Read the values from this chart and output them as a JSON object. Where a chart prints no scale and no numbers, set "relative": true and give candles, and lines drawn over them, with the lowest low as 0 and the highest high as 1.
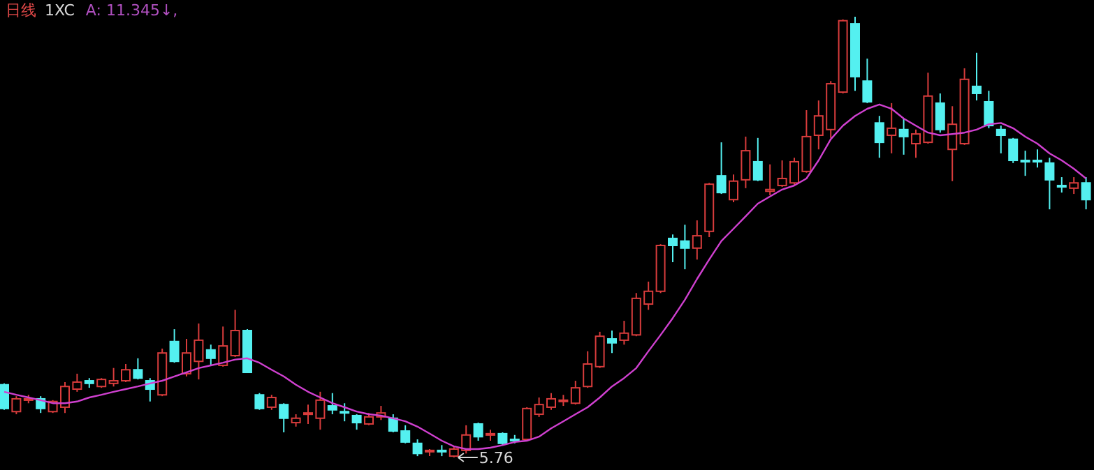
{
  "chart_data": {
    "type": "candlestick",
    "title": "日线",
    "subtitle": "1XC",
    "relative": true,
    "annotations": [
      "A: 11.345↓,",
      "5.76"
    ],
    "categories": [
      null,
      null,
      null,
      null,
      null,
      null,
      null,
      null,
      null,
      null,
      null,
      null,
      null,
      null,
      null,
      null,
      null,
      null,
      null,
      null,
      null,
      null,
      null,
      null,
      null,
      null,
      null,
      null,
      null,
      null,
      null,
      null,
      null,
      null,
      null,
      null,
      null,
      null,
      null,
      null,
      null,
      null,
      null,
      null,
      null,
      null,
      null,
      null,
      null,
      null,
      null,
      null,
      null,
      null,
      null,
      null,
      null,
      null,
      null,
      null,
      null,
      null,
      null,
      null,
      null,
      null,
      null,
      null,
      null,
      null,
      null,
      null,
      null,
      null,
      null,
      null,
      null,
      null,
      null,
      null,
      null,
      null,
      null,
      null,
      null,
      null,
      null,
      null,
      null,
      null
    ],
    "ohlc": [
      [
        0.165,
        0.168,
        0.108,
        0.111
      ],
      [
        0.104,
        0.139,
        0.098,
        0.133
      ],
      [
        0.13,
        0.142,
        0.123,
        0.133
      ],
      [
        0.133,
        0.139,
        0.101,
        0.111
      ],
      [
        0.104,
        0.13,
        0.101,
        0.127
      ],
      [
        0.114,
        0.171,
        0.101,
        0.161
      ],
      [
        0.155,
        0.19,
        0.149,
        0.171
      ],
      [
        0.174,
        0.18,
        0.158,
        0.168
      ],
      [
        0.161,
        0.18,
        0.158,
        0.177
      ],
      [
        0.168,
        0.203,
        0.161,
        0.174
      ],
      [
        0.174,
        0.212,
        0.171,
        0.199
      ],
      [
        0.199,
        0.225,
        0.177,
        0.18
      ],
      [
        0.174,
        0.18,
        0.127,
        0.155
      ],
      [
        0.142,
        0.247,
        0.139,
        0.237
      ],
      [
        0.263,
        0.291,
        0.215,
        0.218
      ],
      [
        0.19,
        0.269,
        0.184,
        0.237
      ],
      [
        0.218,
        0.304,
        0.177,
        0.266
      ],
      [
        0.244,
        0.256,
        0.209,
        0.225
      ],
      [
        0.209,
        0.297,
        0.206,
        0.253
      ],
      [
        0.231,
        0.335,
        0.228,
        0.288
      ],
      [
        0.288,
        0.291,
        0.193,
        0.193
      ],
      [
        0.142,
        0.146,
        0.108,
        0.111
      ],
      [
        0.114,
        0.142,
        0.108,
        0.136
      ],
      [
        0.12,
        0.123,
        0.057,
        0.089
      ],
      [
        0.079,
        0.098,
        0.07,
        0.089
      ],
      [
        0.098,
        0.12,
        0.076,
        0.101
      ],
      [
        0.089,
        0.149,
        0.063,
        0.13
      ],
      [
        0.117,
        0.146,
        0.098,
        0.108
      ],
      [
        0.104,
        0.123,
        0.082,
        0.101
      ],
      [
        0.095,
        0.098,
        0.063,
        0.079
      ],
      [
        0.076,
        0.101,
        0.073,
        0.092
      ],
      [
        0.092,
        0.117,
        0.085,
        0.101
      ],
      [
        0.089,
        0.098,
        0.057,
        0.06
      ],
      [
        0.06,
        0.073,
        0.032,
        0.035
      ],
      [
        0.032,
        0.041,
        0.003,
        0.009
      ],
      [
        0.013,
        0.019,
        0.003,
        0.016
      ],
      [
        0.016,
        0.028,
        0.003,
        0.013
      ],
      [
        0.003,
        0.025,
        0,
        0.019
      ],
      [
        0.016,
        0.073,
        0.009,
        0.051
      ],
      [
        0.076,
        0.079,
        0.038,
        0.047
      ],
      [
        0.051,
        0.063,
        0.038,
        0.054
      ],
      [
        0.054,
        0.057,
        0.028,
        0.032
      ],
      [
        0.041,
        0.051,
        0.032,
        0.038
      ],
      [
        0.041,
        0.114,
        0.038,
        0.111
      ],
      [
        0.098,
        0.136,
        0.092,
        0.12
      ],
      [
        0.114,
        0.146,
        0.108,
        0.133
      ],
      [
        0.127,
        0.142,
        0.117,
        0.13
      ],
      [
        0.123,
        0.174,
        0.12,
        0.158
      ],
      [
        0.161,
        0.241,
        0.158,
        0.212
      ],
      [
        0.206,
        0.285,
        0.203,
        0.275
      ],
      [
        0.269,
        0.288,
        0.237,
        0.26
      ],
      [
        0.266,
        0.31,
        0.256,
        0.282
      ],
      [
        0.278,
        0.373,
        0.275,
        0.361
      ],
      [
        0.348,
        0.399,
        0.335,
        0.377
      ],
      [
        0.377,
        0.484,
        0.373,
        0.481
      ],
      [
        0.497,
        0.506,
        0.443,
        0.481
      ],
      [
        0.491,
        0.528,
        0.427,
        0.475
      ],
      [
        0.475,
        0.538,
        0.449,
        0.503
      ],
      [
        0.513,
        0.623,
        0.5,
        0.62
      ],
      [
        0.639,
        0.715,
        0.598,
        0.601
      ],
      [
        0.585,
        0.642,
        0.579,
        0.627
      ],
      [
        0.63,
        0.728,
        0.611,
        0.696
      ],
      [
        0.671,
        0.725,
        0.627,
        0.63
      ],
      [
        0.604,
        0.665,
        0.595,
        0.608
      ],
      [
        0.617,
        0.674,
        0.614,
        0.633
      ],
      [
        0.623,
        0.68,
        0.617,
        0.671
      ],
      [
        0.649,
        0.788,
        0.646,
        0.728
      ],
      [
        0.731,
        0.81,
        0.699,
        0.775
      ],
      [
        0.744,
        0.854,
        0.725,
        0.848
      ],
      [
        0.829,
        0.994,
        0.826,
        0.991
      ],
      [
        0.984,
        1,
        0.832,
        0.864
      ],
      [
        0.854,
        0.905,
        0.804,
        0.807
      ],
      [
        0.759,
        0.775,
        0.68,
        0.715
      ],
      [
        0.731,
        0.804,
        0.69,
        0.747
      ],
      [
        0.744,
        0.769,
        0.687,
        0.728
      ],
      [
        0.712,
        0.744,
        0.68,
        0.734
      ],
      [
        0.715,
        0.873,
        0.712,
        0.82
      ],
      [
        0.804,
        0.826,
        0.737,
        0.744
      ],
      [
        0.699,
        0.797,
        0.627,
        0.756
      ],
      [
        0.712,
        0.883,
        0.709,
        0.858
      ],
      [
        0.842,
        0.918,
        0.81,
        0.826
      ],
      [
        0.807,
        0.832,
        0.747,
        0.753
      ],
      [
        0.744,
        0.753,
        0.69,
        0.731
      ],
      [
        0.722,
        0.725,
        0.668,
        0.674
      ],
      [
        0.674,
        0.696,
        0.639,
        0.671
      ],
      [
        0.674,
        0.699,
        0.658,
        0.671
      ],
      [
        0.668,
        0.68,
        0.563,
        0.63
      ],
      [
        0.617,
        0.636,
        0.601,
        0.614
      ],
      [
        0.611,
        0.636,
        0.598,
        0.623
      ],
      [
        0.623,
        0.636,
        0.563,
        0.585
      ]
    ],
    "series": [
      {
        "type": "line",
        "color": "#d040d0",
        "values": [
          0.149,
          0.142,
          0.136,
          0.13,
          0.123,
          0.123,
          0.127,
          0.136,
          0.142,
          0.149,
          0.155,
          0.161,
          0.168,
          0.174,
          0.184,
          0.193,
          0.203,
          0.209,
          0.215,
          0.222,
          0.225,
          0.215,
          0.199,
          0.184,
          0.165,
          0.149,
          0.136,
          0.123,
          0.114,
          0.104,
          0.098,
          0.095,
          0.089,
          0.082,
          0.07,
          0.054,
          0.038,
          0.025,
          0.019,
          0.019,
          0.022,
          0.028,
          0.035,
          0.038,
          0.047,
          0.066,
          0.082,
          0.098,
          0.114,
          0.136,
          0.161,
          0.18,
          0.203,
          0.241,
          0.278,
          0.316,
          0.358,
          0.405,
          0.449,
          0.491,
          0.519,
          0.547,
          0.576,
          0.592,
          0.608,
          0.617,
          0.633,
          0.674,
          0.722,
          0.753,
          0.775,
          0.791,
          0.801,
          0.791,
          0.769,
          0.753,
          0.737,
          0.731,
          0.734,
          0.737,
          0.744,
          0.756,
          0.759,
          0.747,
          0.728,
          0.712,
          0.69,
          0.674,
          0.655,
          0.633
        ]
      }
    ]
  }
}
